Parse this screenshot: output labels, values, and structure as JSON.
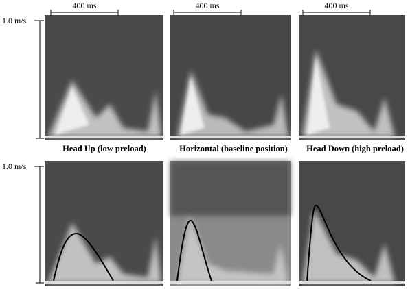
{
  "scale_bar_labels": [
    "400 ms",
    "400 ms",
    "400 ms"
  ],
  "velocity_labels": [
    "1.0 m/s",
    "1.0 m/s"
  ],
  "panel_labels": [
    "Head Up (low preload)",
    "Horizontal (baseline position)",
    "Head Down (high preload)"
  ]
}
